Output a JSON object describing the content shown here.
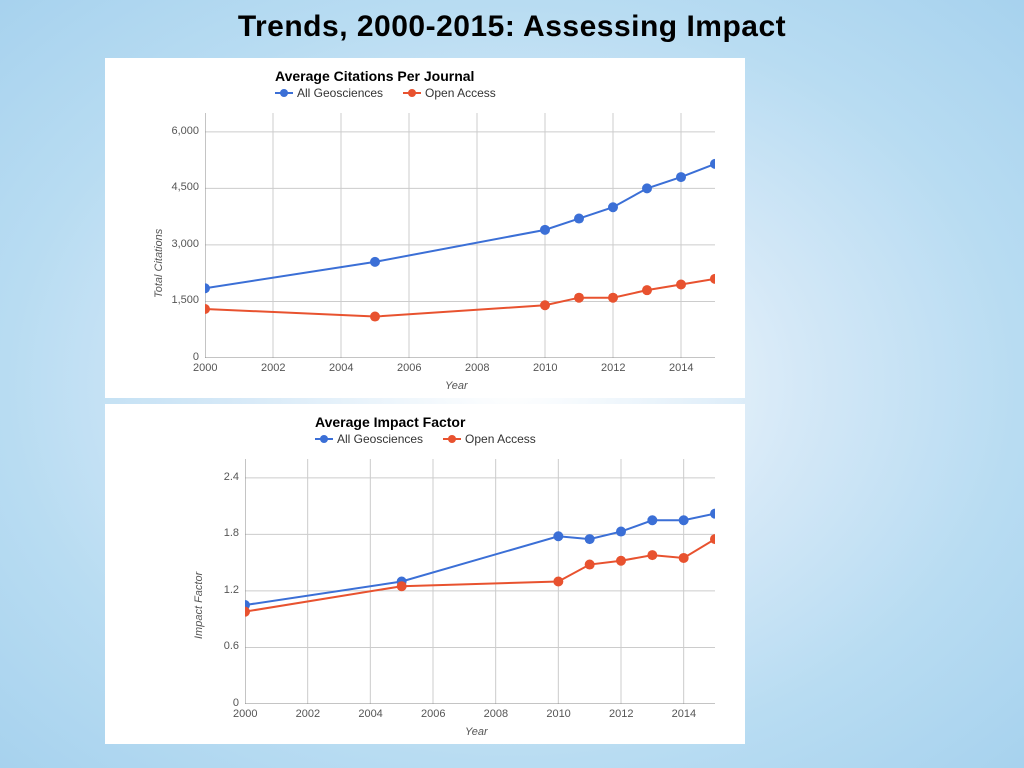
{
  "page_title": "Trends, 2000-2015: Assessing Impact",
  "background": {
    "gradient_center": "#ffffff",
    "gradient_mid": "#d4e8f7",
    "gradient_outer": "#a7d2ee"
  },
  "chart1": {
    "type": "line",
    "title": "Average Citations Per Journal",
    "xlabel": "Year",
    "ylabel": "Total Citations",
    "title_fontsize": 14,
    "label_fontsize": 11,
    "xlim": [
      2000,
      2015
    ],
    "ylim": [
      0,
      6500
    ],
    "xticks": [
      2000,
      2002,
      2004,
      2006,
      2008,
      2010,
      2012,
      2014
    ],
    "yticks": [
      0,
      1500,
      3000,
      4500,
      6000
    ],
    "ytick_labels": [
      "0",
      "1,500",
      "3,000",
      "4,500",
      "6,000"
    ],
    "grid_color": "#cccccc",
    "axis_color": "#888888",
    "background_color": "#ffffff",
    "tick_label_color": "#555555",
    "marker_size": 5,
    "line_width": 2,
    "series": [
      {
        "name": "All Geosciences",
        "color": "#3b6fd6",
        "x": [
          2000,
          2005,
          2010,
          2011,
          2012,
          2013,
          2014,
          2015
        ],
        "y": [
          1850,
          2550,
          3400,
          3700,
          4000,
          4500,
          4800,
          5150
        ]
      },
      {
        "name": "Open Access",
        "color": "#e8522f",
        "x": [
          2000,
          2005,
          2010,
          2011,
          2012,
          2013,
          2014,
          2015
        ],
        "y": [
          1300,
          1100,
          1400,
          1600,
          1600,
          1800,
          1950,
          2100
        ]
      }
    ]
  },
  "chart2": {
    "type": "line",
    "title": "Average Impact Factor",
    "xlabel": "Year",
    "ylabel": "Impact Factor",
    "title_fontsize": 14,
    "label_fontsize": 11,
    "xlim": [
      2000,
      2015
    ],
    "ylim": [
      0,
      2.6
    ],
    "xticks": [
      2000,
      2002,
      2004,
      2006,
      2008,
      2010,
      2012,
      2014
    ],
    "yticks": [
      0,
      0.6,
      1.2,
      1.8,
      2.4
    ],
    "ytick_labels": [
      "0",
      "0.6",
      "1.2",
      "1.8",
      "2.4"
    ],
    "grid_color": "#cccccc",
    "axis_color": "#888888",
    "background_color": "#ffffff",
    "tick_label_color": "#555555",
    "marker_size": 5,
    "line_width": 2,
    "series": [
      {
        "name": "All Geosciences",
        "color": "#3b6fd6",
        "x": [
          2000,
          2005,
          2010,
          2011,
          2012,
          2013,
          2014,
          2015
        ],
        "y": [
          1.05,
          1.3,
          1.78,
          1.75,
          1.83,
          1.95,
          1.95,
          2.02
        ]
      },
      {
        "name": "Open Access",
        "color": "#e8522f",
        "x": [
          2000,
          2005,
          2010,
          2011,
          2012,
          2013,
          2014,
          2015
        ],
        "y": [
          0.98,
          1.25,
          1.3,
          1.48,
          1.52,
          1.58,
          1.55,
          1.75
        ]
      }
    ]
  }
}
